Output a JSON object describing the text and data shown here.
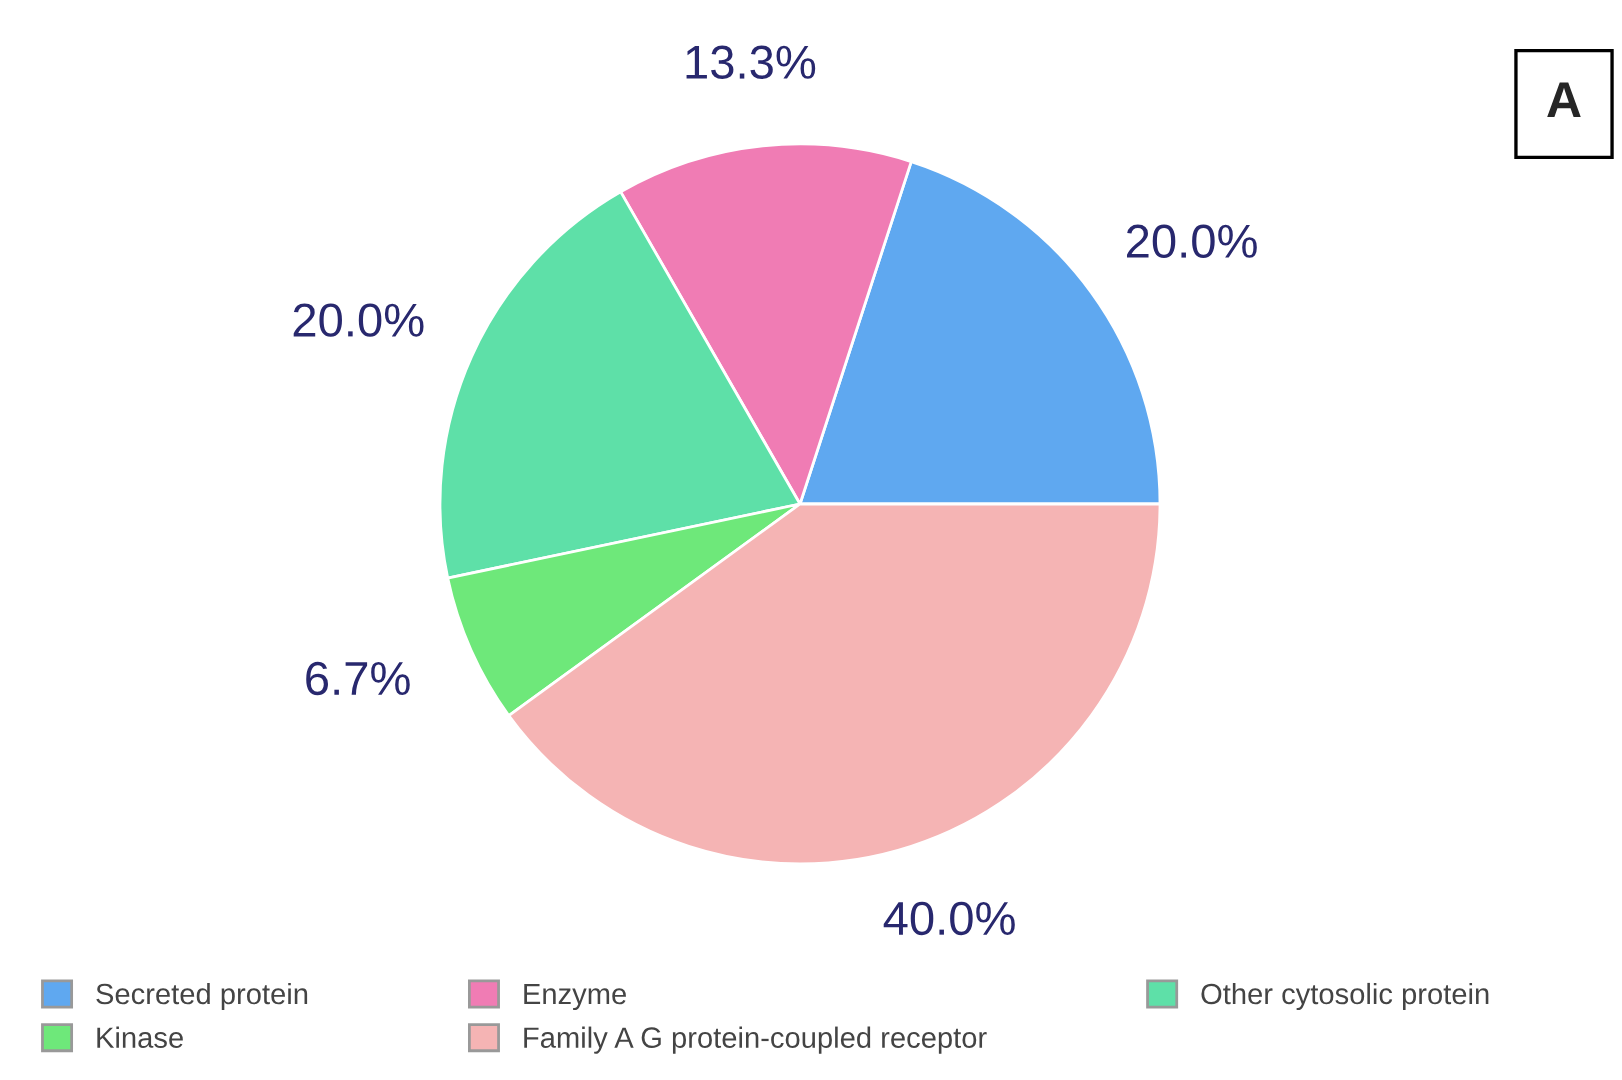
{
  "chart_data": {
    "type": "pie",
    "categories": [
      "Secreted protein",
      "Enzyme",
      "Other cytosolic protein",
      "Kinase",
      "Family A G protein-coupled receptor"
    ],
    "values": [
      20.0,
      13.3,
      20.0,
      6.7,
      40.0
    ],
    "colors": [
      "#5fa8f0",
      "#f07cb4",
      "#5ee0a8",
      "#6ee87a",
      "#f5b4b4"
    ],
    "value_labels": [
      "20.0%",
      "13.3%",
      "20.0%",
      "6.7%",
      "40.0%"
    ],
    "annotations": [
      "A"
    ],
    "legend": "bottom"
  }
}
